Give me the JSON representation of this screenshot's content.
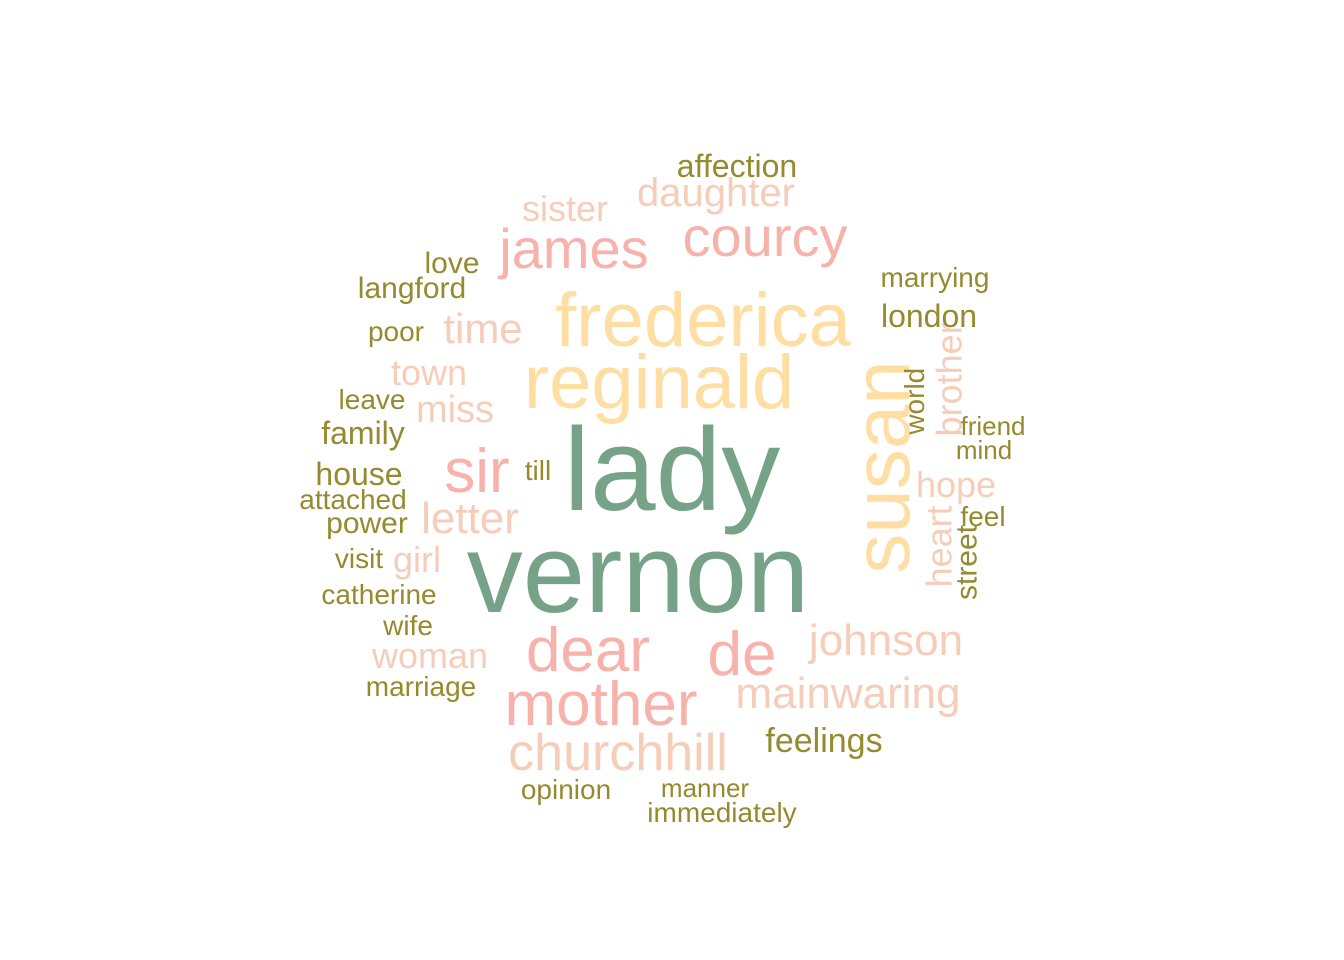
{
  "palette": {
    "green": "#76a287",
    "yellow": "#ffdea3",
    "pink": "#f7b3ab",
    "peach": "#f6cdb8",
    "olive": "#958a2e"
  },
  "words": [
    {
      "text": "lady",
      "color": "green"
    },
    {
      "text": "vernon",
      "color": "green"
    },
    {
      "text": "frederica",
      "color": "yellow"
    },
    {
      "text": "reginald",
      "color": "yellow"
    },
    {
      "text": "susan",
      "color": "yellow"
    },
    {
      "text": "courcy",
      "color": "pink"
    },
    {
      "text": "james",
      "color": "pink"
    },
    {
      "text": "sir",
      "color": "pink"
    },
    {
      "text": "dear",
      "color": "pink"
    },
    {
      "text": "de",
      "color": "pink"
    },
    {
      "text": "mother",
      "color": "pink"
    },
    {
      "text": "daughter",
      "color": "peach"
    },
    {
      "text": "sister",
      "color": "peach"
    },
    {
      "text": "time",
      "color": "peach"
    },
    {
      "text": "town",
      "color": "peach"
    },
    {
      "text": "miss",
      "color": "peach"
    },
    {
      "text": "letter",
      "color": "peach"
    },
    {
      "text": "girl",
      "color": "peach"
    },
    {
      "text": "woman",
      "color": "peach"
    },
    {
      "text": "johnson",
      "color": "peach"
    },
    {
      "text": "mainwaring",
      "color": "peach"
    },
    {
      "text": "churchhill",
      "color": "peach"
    },
    {
      "text": "hope",
      "color": "peach"
    },
    {
      "text": "brother",
      "color": "peach"
    },
    {
      "text": "heart",
      "color": "peach"
    },
    {
      "text": "affection",
      "color": "olive"
    },
    {
      "text": "love",
      "color": "olive"
    },
    {
      "text": "langford",
      "color": "olive"
    },
    {
      "text": "marrying",
      "color": "olive"
    },
    {
      "text": "london",
      "color": "olive"
    },
    {
      "text": "poor",
      "color": "olive"
    },
    {
      "text": "leave",
      "color": "olive"
    },
    {
      "text": "family",
      "color": "olive"
    },
    {
      "text": "house",
      "color": "olive"
    },
    {
      "text": "attached",
      "color": "olive"
    },
    {
      "text": "power",
      "color": "olive"
    },
    {
      "text": "visit",
      "color": "olive"
    },
    {
      "text": "catherine",
      "color": "olive"
    },
    {
      "text": "wife",
      "color": "olive"
    },
    {
      "text": "marriage",
      "color": "olive"
    },
    {
      "text": "till",
      "color": "olive"
    },
    {
      "text": "world",
      "color": "olive"
    },
    {
      "text": "friend",
      "color": "olive"
    },
    {
      "text": "mind",
      "color": "olive"
    },
    {
      "text": "feel",
      "color": "olive"
    },
    {
      "text": "street",
      "color": "olive"
    },
    {
      "text": "feelings",
      "color": "olive"
    },
    {
      "text": "opinion",
      "color": "olive"
    },
    {
      "text": "manner",
      "color": "olive"
    },
    {
      "text": "immediately",
      "color": "olive"
    }
  ]
}
